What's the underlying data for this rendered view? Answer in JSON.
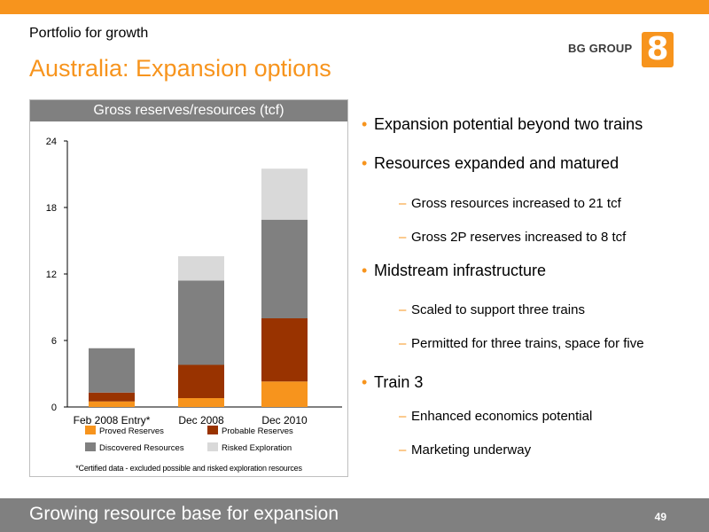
{
  "slide": {
    "subtitle": "Portfolio for growth",
    "title": "Australia: Expansion options",
    "logo_text": "BG GROUP",
    "logo_mark": "8",
    "footer": "Growing resource base for expansion",
    "page_number": "49"
  },
  "bullets": [
    {
      "level": 1,
      "text": "Expansion potential beyond two trains"
    },
    {
      "level": 1,
      "text": "Resources expanded and matured"
    },
    {
      "level": 2,
      "text": "Gross resources increased to 21 tcf"
    },
    {
      "level": 2,
      "text": "Gross 2P reserves increased to 8 tcf"
    },
    {
      "level": 1,
      "text": "Midstream infrastructure"
    },
    {
      "level": 2,
      "text": "Scaled to support three trains"
    },
    {
      "level": 2,
      "text": "Permitted for three trains, space for five"
    },
    {
      "level": 1,
      "text": "Train 3"
    },
    {
      "level": 2,
      "text": "Enhanced economics potential"
    },
    {
      "level": 2,
      "text": "Marketing underway"
    }
  ],
  "chart_data": {
    "type": "bar",
    "stacked": true,
    "title": "Gross reserves/resources (tcf)",
    "categories": [
      "Feb 2008 Entry*",
      "Dec 2008",
      "Dec 2010"
    ],
    "yticks": [
      "0",
      "6",
      "12",
      "18",
      "24"
    ],
    "ylim": [
      0,
      24
    ],
    "series": [
      {
        "name": "Proved Reserves",
        "color": "#f7941d",
        "values": [
          0.5,
          0.8,
          2.3
        ]
      },
      {
        "name": "Probable Reserves",
        "color": "#993300",
        "values": [
          0.8,
          3.0,
          5.7
        ]
      },
      {
        "name": "Discovered Resources",
        "color": "#808080",
        "values": [
          4.0,
          7.6,
          8.9
        ]
      },
      {
        "name": "Risked Exploration",
        "color": "#d9d9d9",
        "values": [
          0.0,
          2.2,
          4.6
        ]
      }
    ],
    "legend_position": "bottom",
    "note": "*Certified data - excluded possible and risked exploration resources"
  }
}
